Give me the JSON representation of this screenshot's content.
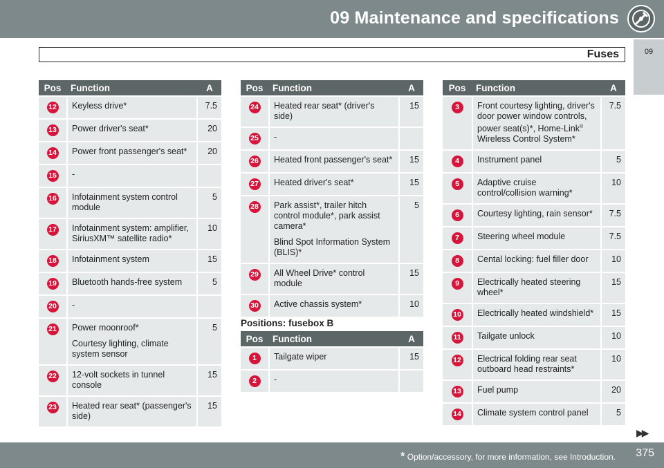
{
  "header": {
    "title": "09 Maintenance and specifications",
    "icon": "wrench-gear-icon"
  },
  "section": {
    "title": "Fuses"
  },
  "tab": {
    "label": "09"
  },
  "table_headers": {
    "pos": "Pos",
    "function": "Function",
    "a": "A"
  },
  "table_left": [
    {
      "pos": "12",
      "function": "Keyless drive*",
      "a": "7.5"
    },
    {
      "pos": "13",
      "function": "Power driver's seat*",
      "a": "20"
    },
    {
      "pos": "14",
      "function": "Power front passenger's seat*",
      "a": "20"
    },
    {
      "pos": "15",
      "function": "-",
      "a": ""
    },
    {
      "pos": "16",
      "function": "Infotainment system control module",
      "a": "5"
    },
    {
      "pos": "17",
      "function": "Infotainment system: amplifier, SiriusXM™ satellite radio*",
      "a": "10"
    },
    {
      "pos": "18",
      "function": "Infotainment system",
      "a": "15"
    },
    {
      "pos": "19",
      "function": "Bluetooth hands-free system",
      "a": "5"
    },
    {
      "pos": "20",
      "function": "-",
      "a": ""
    },
    {
      "pos": "21",
      "function": "Power moonroof*",
      "function2": "Courtesy lighting, climate system sensor",
      "a": "5"
    },
    {
      "pos": "22",
      "function": "12-volt sockets in tunnel console",
      "a": "15"
    },
    {
      "pos": "23",
      "function": "Heated rear seat* (passenger's side)",
      "a": "15"
    }
  ],
  "table_middle": [
    {
      "pos": "24",
      "function": "Heated rear seat* (driver's side)",
      "a": "15"
    },
    {
      "pos": "25",
      "function": "-",
      "a": ""
    },
    {
      "pos": "26",
      "function": "Heated front passenger's seat*",
      "a": "15"
    },
    {
      "pos": "27",
      "function": "Heated driver's seat*",
      "a": "15"
    },
    {
      "pos": "28",
      "function": "Park assist*, trailer hitch control module*, park assist camera*",
      "function2": "Blind Spot Information System (BLIS)*",
      "a": "5"
    },
    {
      "pos": "29",
      "function": "All Wheel Drive* control module",
      "a": "15"
    },
    {
      "pos": "30",
      "function": "Active chassis system*",
      "a": "10"
    }
  ],
  "fusebox_b": {
    "heading": "Positions: fusebox B",
    "rows": [
      {
        "pos": "1",
        "function": "Tailgate wiper",
        "a": "15"
      },
      {
        "pos": "2",
        "function": "-",
        "a": ""
      }
    ]
  },
  "table_right": [
    {
      "pos": "3",
      "function_a": "Front courtesy lighting, driver's door power window controls, power seat(s)*, Home-Link",
      "sup": "®",
      "function_b": " Wireless Control System*",
      "a": "7.5"
    },
    {
      "pos": "4",
      "function": "Instrument panel",
      "a": "5"
    },
    {
      "pos": "5",
      "function": "Adaptive cruise control/collision warning*",
      "a": "10"
    },
    {
      "pos": "6",
      "function": "Courtesy lighting, rain sensor*",
      "a": "7.5"
    },
    {
      "pos": "7",
      "function": "Steering wheel module",
      "a": "7.5"
    },
    {
      "pos": "8",
      "function": "Cental locking: fuel filler door",
      "a": "10"
    },
    {
      "pos": "9",
      "function": "Electrically heated steering wheel*",
      "a": "15"
    },
    {
      "pos": "10",
      "function": "Electrically heated windshield*",
      "a": "15"
    },
    {
      "pos": "11",
      "function": "Tailgate unlock",
      "a": "10"
    },
    {
      "pos": "12",
      "function": "Electrical folding rear seat outboard head restraints*",
      "a": "10"
    },
    {
      "pos": "13",
      "function": "Fuel pump",
      "a": "20"
    },
    {
      "pos": "14",
      "function": "Climate system control panel",
      "a": "5"
    }
  ],
  "continue_arrows": "▶▶",
  "footer": {
    "star": "*",
    "note": "Option/accessory, for more information, see Introduction.",
    "page": "375"
  },
  "colors": {
    "header_bar": "#7d898b",
    "table_header": "#5d6667",
    "cell_bg": "#e5e9ea",
    "badge": "#d7153a"
  }
}
